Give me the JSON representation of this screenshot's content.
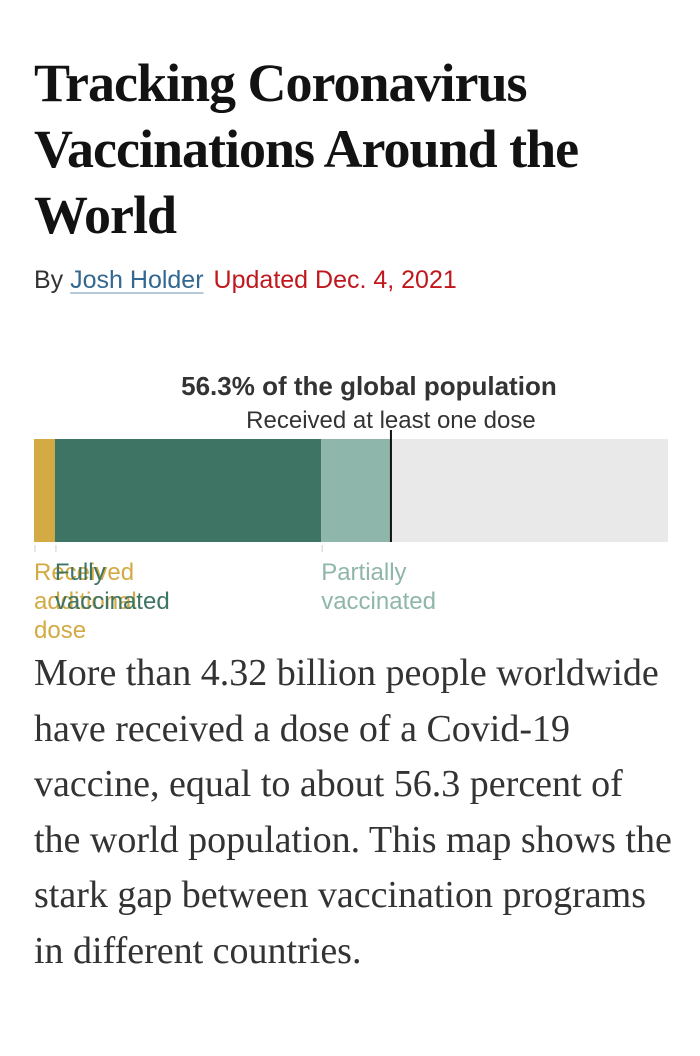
{
  "article": {
    "headline": "Tracking Coronavirus Vaccinations Around the World",
    "byline_prefix": "By",
    "author": "Josh Holder",
    "updated": "Updated Dec. 4, 2021",
    "body": "More than 4.32 billion people worldwide have received a dose of a Covid-19 vaccine, equal to about 56.3 percent of the world population. This map shows the stark gap between vaccination programs in different countries."
  },
  "colors": {
    "headline": "#121212",
    "text": "#333333",
    "author_link": "#326891",
    "updated": "#c0181d",
    "bar_background": "#e9e9e9",
    "marker": "#121212",
    "tick": "#cfcfcf"
  },
  "chart_data": {
    "type": "bar",
    "orientation": "horizontal",
    "stacked": true,
    "title": "56.3% of the global population",
    "subtitle": "Received at least one dose",
    "marker_percent": 56.3,
    "xlim": [
      0,
      100
    ],
    "series": [
      {
        "name": "Received additional dose",
        "label_lines": [
          "Received",
          "additional",
          "dose"
        ],
        "value": 3.3,
        "color": "#d3aa43"
      },
      {
        "name": "Fully vaccinated",
        "label_lines": [
          "Fully",
          "vaccinated"
        ],
        "value": 42.0,
        "color": "#3e7464"
      },
      {
        "name": "Partially vaccinated",
        "label_lines": [
          "Partially",
          "vaccinated"
        ],
        "value": 11.0,
        "color": "#8fb6aa"
      }
    ]
  }
}
